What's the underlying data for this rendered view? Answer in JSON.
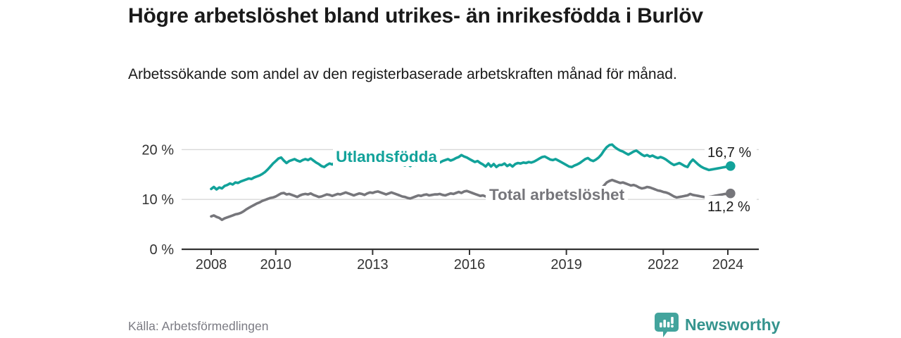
{
  "header": {
    "title": "Högre arbetslöshet bland utrikes- än inrikesfödda i Burlöv",
    "subtitle": "Arbetssökande som andel av den registerbaserade arbetskraften månad för månad."
  },
  "chart_data": {
    "type": "line",
    "title": "Högre arbetslöshet bland utrikes- än inrikesfödda i Burlöv",
    "x_start": {
      "year": 2008,
      "month": 1
    },
    "frequency": "monthly",
    "x_tick_years": [
      2008,
      2010,
      2013,
      2016,
      2019,
      2022,
      2024
    ],
    "y_ticks": [
      {
        "value": 0,
        "label": "0 %"
      },
      {
        "value": 10,
        "label": "10 %"
      },
      {
        "value": 20,
        "label": "20 %"
      }
    ],
    "ylim": [
      0,
      22
    ],
    "grid": "horizontal",
    "legend_position": "inline-labels",
    "series": [
      {
        "name": "Total arbetslöshet",
        "color": "#76767B",
        "end_label": "11,2 %",
        "end_value": 11.2,
        "values": [
          6.6,
          6.8,
          6.5,
          6.3,
          5.9,
          6.2,
          6.4,
          6.6,
          6.8,
          7.0,
          7.1,
          7.3,
          7.6,
          8.0,
          8.3,
          8.6,
          8.9,
          9.2,
          9.4,
          9.7,
          9.9,
          10.1,
          10.3,
          10.4,
          10.6,
          10.9,
          11.2,
          11.3,
          11.0,
          11.1,
          10.9,
          10.7,
          10.5,
          10.8,
          11.0,
          11.1,
          11.0,
          11.2,
          10.9,
          10.7,
          10.5,
          10.6,
          10.8,
          11.0,
          10.9,
          10.7,
          10.9,
          11.1,
          11.0,
          11.2,
          11.4,
          11.2,
          11.0,
          10.8,
          11.0,
          11.2,
          11.1,
          10.9,
          11.2,
          11.4,
          11.3,
          11.5,
          11.6,
          11.4,
          11.2,
          11.0,
          11.2,
          11.4,
          11.2,
          11.0,
          10.8,
          10.6,
          10.5,
          10.3,
          10.2,
          10.4,
          10.6,
          10.8,
          10.7,
          10.9,
          11.0,
          10.8,
          10.9,
          11.0,
          11.0,
          11.1,
          10.9,
          10.8,
          11.0,
          11.2,
          11.1,
          11.3,
          11.5,
          11.3,
          11.6,
          11.7,
          11.5,
          11.3,
          11.1,
          10.9,
          10.7,
          10.8,
          10.6,
          10.7,
          10.9,
          10.8,
          10.6,
          10.7,
          10.8,
          10.9,
          11.0,
          10.8,
          10.7,
          10.9,
          11.0,
          11.1,
          10.9,
          10.8,
          11.0,
          11.1,
          11.0,
          11.2,
          11.1,
          10.9,
          10.8,
          11.0,
          11.2,
          11.3,
          11.1,
          11.0,
          10.9,
          11.0,
          11.1,
          11.0,
          10.9,
          11.1,
          11.2,
          11.1,
          11.3,
          11.4,
          11.2,
          11.1,
          11.3,
          11.5,
          11.8,
          12.2,
          12.8,
          13.4,
          13.7,
          13.9,
          13.7,
          13.5,
          13.3,
          13.4,
          13.2,
          13.0,
          12.8,
          12.9,
          12.7,
          12.4,
          12.2,
          12.3,
          12.5,
          12.4,
          12.2,
          12.0,
          11.8,
          11.7,
          11.5,
          11.4,
          11.2,
          10.9,
          10.6,
          10.4,
          10.5,
          10.6,
          10.7,
          10.8,
          11.1,
          10.9,
          10.8,
          10.7,
          10.6,
          10.5,
          10.4,
          10.5,
          10.6,
          10.7,
          10.8,
          10.9,
          11.0,
          11.1,
          11.1,
          11.2
        ]
      },
      {
        "name": "Utlandsfödda",
        "color": "#12A29A",
        "end_label": "16,7 %",
        "end_value": 16.7,
        "values": [
          12.1,
          12.5,
          12.0,
          12.4,
          12.2,
          12.7,
          12.9,
          13.2,
          13.0,
          13.4,
          13.3,
          13.6,
          13.8,
          14.0,
          14.2,
          14.1,
          14.4,
          14.6,
          14.8,
          15.1,
          15.5,
          16.0,
          16.6,
          17.2,
          17.7,
          18.2,
          18.4,
          17.8,
          17.3,
          17.7,
          17.9,
          18.1,
          17.8,
          17.6,
          17.9,
          18.1,
          17.9,
          18.2,
          17.8,
          17.4,
          17.1,
          16.7,
          16.5,
          16.9,
          17.2,
          17.0,
          17.4,
          17.6,
          17.7,
          18.0,
          17.8,
          18.1,
          17.9,
          17.6,
          17.8,
          18.0,
          17.7,
          17.5,
          17.2,
          17.4,
          17.6,
          17.9,
          17.7,
          18.0,
          18.1,
          17.9,
          18.2,
          18.0,
          17.8,
          17.5,
          17.3,
          17.0,
          16.8,
          17.1,
          16.7,
          17.2,
          16.9,
          17.1,
          17.4,
          17.2,
          17.5,
          17.7,
          17.5,
          17.3,
          17.6,
          17.4,
          17.7,
          17.9,
          18.1,
          17.8,
          18.0,
          18.3,
          18.5,
          18.9,
          18.6,
          18.4,
          18.1,
          17.8,
          17.5,
          17.7,
          17.3,
          17.0,
          16.6,
          17.2,
          16.6,
          17.1,
          16.5,
          16.9,
          16.9,
          17.2,
          16.7,
          17.0,
          16.6,
          17.1,
          17.3,
          17.2,
          17.4,
          17.3,
          17.5,
          17.4,
          17.6,
          17.9,
          18.2,
          18.5,
          18.6,
          18.3,
          18.0,
          17.9,
          18.1,
          17.8,
          17.5,
          17.2,
          16.9,
          16.6,
          16.5,
          16.8,
          17.0,
          17.3,
          17.7,
          18.1,
          18.3,
          17.9,
          17.7,
          18.0,
          18.4,
          19.0,
          19.8,
          20.5,
          20.9,
          21.0,
          20.5,
          20.1,
          19.8,
          19.6,
          19.3,
          19.0,
          19.3,
          19.6,
          19.8,
          19.4,
          19.0,
          18.7,
          18.9,
          18.6,
          18.8,
          18.5,
          18.3,
          18.5,
          18.3,
          18.0,
          17.6,
          17.2,
          16.9,
          17.1,
          17.3,
          17.0,
          16.7,
          16.5,
          17.4,
          18.0,
          17.5,
          17.0,
          16.6,
          16.3,
          16.1,
          15.9,
          16.0,
          16.1,
          16.2,
          16.3,
          16.4,
          16.5,
          16.6,
          16.7
        ]
      }
    ]
  },
  "footer": {
    "source": "Källa: Arbetsförmedlingen",
    "brand": "Newsworthy",
    "logo_icon": "bar-chart-speech-bubble-icon"
  },
  "colors": {
    "accent_teal": "#12A29A",
    "series_gray": "#7C7C81",
    "label_gray": "#76767B",
    "logo_teal": "#35948E",
    "logo_icon_teal": "#43A49D",
    "axis": "#333333",
    "grid": "#D8D8D8",
    "text_dark": "#1A1A1A",
    "muted_text": "#7B7B83"
  }
}
